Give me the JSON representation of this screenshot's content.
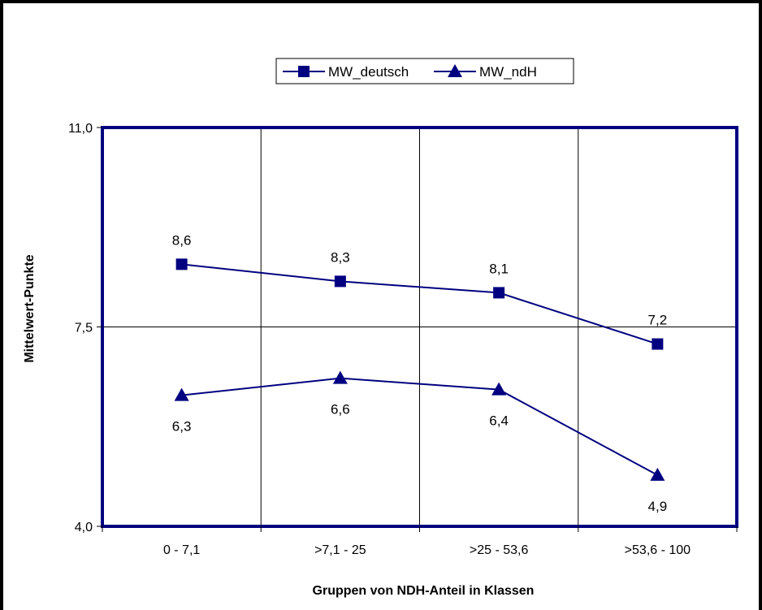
{
  "chart_data": {
    "type": "line",
    "categories": [
      "0 - 7,1",
      ">7,1 - 25",
      ">25 - 53,6",
      ">53,6 - 100"
    ],
    "series": [
      {
        "name": "MW_deutsch",
        "values": [
          8.6,
          8.3,
          8.1,
          7.2
        ],
        "labels": [
          "8,6",
          "8,3",
          "8,1",
          "7,2"
        ],
        "marker": "square",
        "label_position": "above"
      },
      {
        "name": "MW_ndH",
        "values": [
          6.3,
          6.6,
          6.4,
          4.9
        ],
        "labels": [
          "6,3",
          "6,6",
          "6,4",
          "4,9"
        ],
        "marker": "triangle",
        "label_position": "below"
      }
    ],
    "xlabel": "Gruppen von NDH-Anteil in Klassen",
    "ylabel": "Mittelwert-Punkte",
    "ylim": [
      4.0,
      11.0
    ],
    "yticks": [
      4.0,
      7.5,
      11.0
    ],
    "ytick_labels": [
      "4,0",
      "7,5",
      "11,0"
    ],
    "grid": true,
    "legend_position": "top-center",
    "colors": {
      "series": "#000080",
      "plot_border": "#000080",
      "grid": "#000000",
      "frame": "#000000"
    }
  }
}
